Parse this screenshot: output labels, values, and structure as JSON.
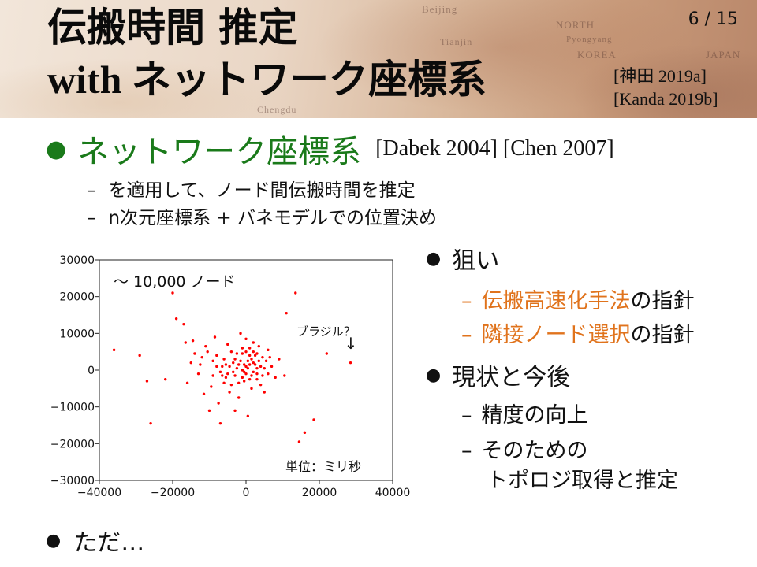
{
  "header": {
    "title_line1": "伝搬時間 推定",
    "title_line2_en": "with ",
    "title_line2_jp": "ネットワーク座標系",
    "page_number": "6 / 15",
    "refs": [
      "[神田 2019a]",
      "[Kanda 2019b]"
    ],
    "map_labels": [
      "Beijing",
      "NORTH",
      "Pyongyang",
      "KOREA",
      "Tianjin",
      "JAPAN",
      "Chengdu"
    ]
  },
  "main": {
    "bullet_title": "ネットワーク座標系",
    "bullet_cite": "[Dabek 2004] [Chen 2007]",
    "sub_items": [
      "を適用して、ノード間伝搬時間を推定",
      "n次元座標系 + バネモデルでの位置決め"
    ]
  },
  "right": {
    "bullet1": "狙い",
    "bullet1_subs": [
      {
        "highlight": "伝搬高速化手法",
        "rest": "の指針"
      },
      {
        "highlight": "隣接ノード選択",
        "rest": "の指針"
      }
    ],
    "bullet2": "現状と今後",
    "bullet2_subs": [
      "精度の向上",
      "そのための",
      "トポロジ取得と推定"
    ]
  },
  "bottom": {
    "bullet": "ただ…"
  },
  "chart_data": {
    "type": "scatter",
    "title": "",
    "xlabel": "",
    "ylabel": "",
    "xlim": [
      -40000,
      40000
    ],
    "ylim": [
      -30000,
      30000
    ],
    "xticks": [
      -40000,
      -20000,
      0,
      20000,
      40000
    ],
    "yticks": [
      -30000,
      -20000,
      -10000,
      0,
      10000,
      20000,
      30000
    ],
    "xtick_labels": [
      "−40000",
      "−20000",
      "0",
      "20000",
      "40000"
    ],
    "ytick_labels": [
      "−30000",
      "−20000",
      "−10000",
      "0",
      "10000",
      "20000",
      "30000"
    ],
    "annotations": {
      "node_count": "〜 10,000 ノード",
      "outlier_label": "ブラジル？",
      "outlier_arrow": "↓",
      "unit": "単位：ミリ秒"
    },
    "grid": false,
    "color": "#ff0000",
    "series": [
      {
        "points": [
          [
            -36000,
            5500
          ],
          [
            -29000,
            4000
          ],
          [
            -27000,
            -3000
          ],
          [
            -26000,
            -14500
          ],
          [
            -22000,
            -2500
          ],
          [
            -20000,
            21000
          ],
          [
            -19000,
            14000
          ],
          [
            -17000,
            12500
          ],
          [
            -16500,
            7500
          ],
          [
            -16000,
            -3500
          ],
          [
            -15000,
            2000
          ],
          [
            -14500,
            8000
          ],
          [
            -14000,
            4500
          ],
          [
            -13000,
            -1000
          ],
          [
            -12500,
            1500
          ],
          [
            -12000,
            3500
          ],
          [
            -11500,
            -6500
          ],
          [
            -11000,
            6500
          ],
          [
            -10500,
            5000
          ],
          [
            -10000,
            -11000
          ],
          [
            -9500,
            -4500
          ],
          [
            -9000,
            2500
          ],
          [
            -8500,
            9000
          ],
          [
            -8000,
            4000
          ],
          [
            -7500,
            -9000
          ],
          [
            -7000,
            -14500
          ],
          [
            -6500,
            1000
          ],
          [
            -6000,
            3000
          ],
          [
            -5500,
            -2000
          ],
          [
            -5000,
            7000
          ],
          [
            -4500,
            -6000
          ],
          [
            -4000,
            5000
          ],
          [
            -3500,
            2000
          ],
          [
            -3000,
            -11000
          ],
          [
            -2500,
            4500
          ],
          [
            -2000,
            -7500
          ],
          [
            -1500,
            10000
          ],
          [
            -1000,
            6000
          ],
          [
            -500,
            -3000
          ],
          [
            0,
            8500
          ],
          [
            500,
            -12500
          ],
          [
            1000,
            4000
          ],
          [
            1500,
            -5000
          ],
          [
            2000,
            7500
          ],
          [
            2500,
            1500
          ],
          [
            3000,
            -2500
          ],
          [
            3500,
            6500
          ],
          [
            4000,
            -4000
          ],
          [
            4500,
            3500
          ],
          [
            5000,
            -6000
          ],
          [
            6000,
            5500
          ],
          [
            7000,
            1000
          ],
          [
            8000,
            -2000
          ],
          [
            9000,
            3000
          ],
          [
            10500,
            -1500
          ],
          [
            11000,
            15500
          ],
          [
            13500,
            21000
          ],
          [
            14500,
            -19500
          ],
          [
            16000,
            -17000
          ],
          [
            18500,
            -13500
          ],
          [
            22000,
            4500
          ],
          [
            28500,
            2000
          ],
          [
            -9000,
            -1500
          ],
          [
            -7000,
            -500
          ],
          [
            -6000,
            -3500
          ],
          [
            -5000,
            -1000
          ],
          [
            -4000,
            -4000
          ],
          [
            -3000,
            -1500
          ],
          [
            -2000,
            -3500
          ],
          [
            -1000,
            -2000
          ],
          [
            0,
            -1000
          ],
          [
            1000,
            -2500
          ],
          [
            2000,
            -500
          ],
          [
            3000,
            500
          ],
          [
            4000,
            1000
          ],
          [
            5000,
            500
          ],
          [
            6000,
            -1000
          ],
          [
            -8000,
            1000
          ],
          [
            -6500,
            -1500
          ],
          [
            -5500,
            1500
          ],
          [
            -4500,
            1000
          ],
          [
            -3500,
            -500
          ],
          [
            -2500,
            500
          ],
          [
            -1500,
            2500
          ],
          [
            -500,
            1500
          ],
          [
            500,
            2500
          ],
          [
            1500,
            3000
          ],
          [
            2500,
            4000
          ],
          [
            3500,
            2500
          ],
          [
            4500,
            -1500
          ],
          [
            5500,
            2500
          ],
          [
            6500,
            3500
          ],
          [
            -1000,
            4500
          ],
          [
            0,
            5000
          ],
          [
            1000,
            6000
          ],
          [
            2000,
            5000
          ],
          [
            3000,
            4500
          ],
          [
            -3000,
            3000
          ],
          [
            -2000,
            1500
          ],
          [
            -1000,
            0
          ],
          [
            0,
            1000
          ],
          [
            1000,
            1500
          ],
          [
            2000,
            2000
          ],
          [
            3000,
            -1000
          ],
          [
            -500,
            -500
          ],
          [
            500,
            500
          ],
          [
            1500,
            -1500
          ]
        ]
      }
    ]
  }
}
